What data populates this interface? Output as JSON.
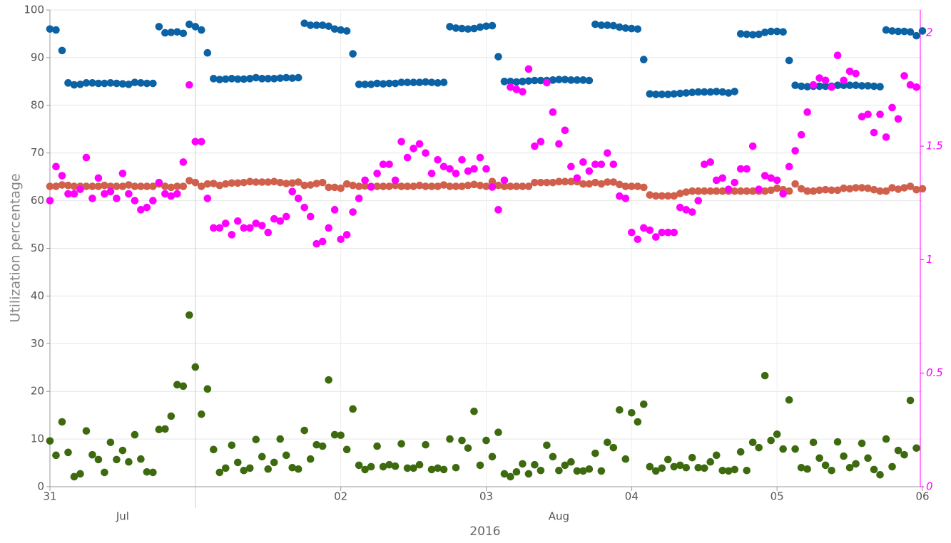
{
  "chart_data": {
    "type": "scatter",
    "y_label": "Utilization percentage",
    "x_label": "2016",
    "xlim": [
      0,
      144
    ],
    "xticks": [
      {
        "value": 0,
        "label": "31"
      },
      {
        "value": 48,
        "label": "02"
      },
      {
        "value": 72,
        "label": "03"
      },
      {
        "value": 96,
        "label": "04"
      },
      {
        "value": 120,
        "label": "05"
      },
      {
        "value": 144,
        "label": "06"
      }
    ],
    "month_boundary": 24,
    "month_labels": [
      {
        "value": 12,
        "label": "Jul"
      },
      {
        "value": 84,
        "label": "Aug"
      }
    ],
    "ylim": [
      0,
      100
    ],
    "yticks": [
      0,
      10,
      20,
      30,
      40,
      50,
      60,
      70,
      80,
      90,
      100
    ],
    "y2lim": [
      0,
      2.1
    ],
    "y2ticks": [
      0,
      0.5,
      1,
      1.5,
      2
    ],
    "y2_color": "#ff00ff",
    "grid": true,
    "x": [
      0,
      1,
      2,
      3,
      4,
      5,
      6,
      7,
      8,
      9,
      10,
      11,
      12,
      13,
      14,
      15,
      16,
      17,
      18,
      19,
      20,
      21,
      22,
      23,
      24,
      25,
      26,
      27,
      28,
      29,
      30,
      31,
      32,
      33,
      34,
      35,
      36,
      37,
      38,
      39,
      40,
      41,
      42,
      43,
      44,
      45,
      46,
      47,
      48,
      49,
      50,
      51,
      52,
      53,
      54,
      55,
      56,
      57,
      58,
      59,
      60,
      61,
      62,
      63,
      64,
      65,
      66,
      67,
      68,
      69,
      70,
      71,
      72,
      73,
      74,
      75,
      76,
      77,
      78,
      79,
      80,
      81,
      82,
      83,
      84,
      85,
      86,
      87,
      88,
      89,
      90,
      91,
      92,
      93,
      94,
      95,
      96,
      97,
      98,
      99,
      100,
      101,
      102,
      103,
      104,
      105,
      106,
      107,
      108,
      109,
      110,
      111,
      112,
      113,
      114,
      115,
      116,
      117,
      118,
      119,
      120,
      121,
      122,
      123,
      124,
      125,
      126,
      127,
      128,
      129,
      130,
      131,
      132,
      133,
      134,
      135,
      136,
      137,
      138,
      139,
      140,
      141,
      142,
      143,
      144
    ],
    "series": [
      {
        "color": "#0b62a4",
        "values": [
          96,
          95.8,
          91.5,
          84.7,
          84.3,
          84.4,
          84.7,
          84.7,
          84.6,
          84.6,
          84.7,
          84.6,
          84.5,
          84.4,
          84.8,
          84.7,
          84.6,
          84.6,
          96.5,
          95.2,
          95.3,
          95.4,
          95.1,
          97,
          96.5,
          95.8,
          91,
          85.6,
          85.4,
          85.5,
          85.6,
          85.5,
          85.5,
          85.6,
          85.8,
          85.6,
          85.6,
          85.6,
          85.7,
          85.8,
          85.7,
          85.8,
          97.2,
          96.8,
          96.8,
          96.8,
          96.6,
          96,
          95.8,
          95.6,
          90.8,
          84.4,
          84.4,
          84.4,
          84.6,
          84.5,
          84.6,
          84.6,
          84.8,
          84.8,
          84.8,
          84.8,
          84.9,
          84.8,
          84.7,
          84.8,
          96.5,
          96.2,
          96.1,
          96,
          96.1,
          96.4,
          96.6,
          96.7,
          90.2,
          85,
          85,
          84.9,
          85,
          85.1,
          85.2,
          85.2,
          85.2,
          85.3,
          85.4,
          85.4,
          85.3,
          85.3,
          85.3,
          85.2,
          97,
          96.8,
          96.8,
          96.7,
          96.4,
          96.2,
          96.1,
          96,
          89.6,
          82.4,
          82.3,
          82.3,
          82.3,
          82.4,
          82.5,
          82.6,
          82.7,
          82.8,
          82.8,
          82.8,
          82.9,
          82.8,
          82.6,
          82.9,
          95,
          94.9,
          94.8,
          94.9,
          95.3,
          95.5,
          95.5,
          95.4,
          89.4,
          84.2,
          84,
          83.9,
          84,
          84,
          84,
          84,
          84.2,
          84.2,
          84.2,
          84.2,
          84.1,
          84.1,
          84,
          83.9,
          95.8,
          95.6,
          95.5,
          95.5,
          95.4,
          94.6,
          95.6
        ]
      },
      {
        "color": "#d0604c",
        "values": [
          63,
          63,
          63.3,
          63.2,
          63,
          63,
          63,
          63,
          63,
          63.2,
          63,
          63,
          63,
          63.3,
          63,
          63,
          63,
          63,
          63.5,
          63,
          62.8,
          63,
          63,
          64.2,
          63.8,
          63,
          63.5,
          63.6,
          63.2,
          63.5,
          63.7,
          63.7,
          63.8,
          64,
          63.9,
          63.9,
          63.9,
          64,
          63.8,
          63.6,
          63.7,
          63.9,
          63.2,
          63.3,
          63.6,
          63.8,
          62.8,
          62.8,
          62.6,
          63.5,
          63.2,
          63,
          63.1,
          63,
          63,
          63,
          63,
          63.2,
          63,
          63,
          63,
          63.2,
          63,
          63,
          63,
          63.3,
          63,
          63,
          63,
          63.2,
          63.4,
          63.2,
          63,
          64,
          63.2,
          63,
          63,
          63,
          63,
          63,
          63.8,
          63.8,
          63.8,
          63.8,
          64,
          64,
          64,
          64,
          63.5,
          63.5,
          63.8,
          63.5,
          63.9,
          63.9,
          63.4,
          63,
          63,
          63,
          62.8,
          61.2,
          61,
          61,
          61,
          61,
          61.5,
          61.8,
          62,
          62,
          62,
          62,
          62,
          62,
          62,
          62,
          62,
          62,
          62,
          62,
          62,
          62.2,
          62.6,
          62.3,
          62,
          63.5,
          62.5,
          62,
          62,
          62.2,
          62.3,
          62.2,
          62.2,
          62.6,
          62.5,
          62.7,
          62.7,
          62.6,
          62.3,
          62,
          62,
          62.7,
          62.4,
          62.7,
          63,
          62.3,
          62.5
        ]
      },
      {
        "color": "#ff00ff",
        "axis": "y2",
        "values": [
          1.26,
          1.41,
          1.37,
          1.29,
          1.29,
          1.31,
          1.45,
          1.27,
          1.36,
          1.29,
          1.3,
          1.27,
          1.38,
          1.29,
          1.26,
          1.22,
          1.23,
          1.26,
          1.34,
          1.29,
          1.28,
          1.29,
          1.43,
          1.77,
          1.52,
          1.52,
          1.27,
          1.14,
          1.14,
          1.16,
          1.11,
          1.17,
          1.14,
          1.14,
          1.16,
          1.15,
          1.12,
          1.18,
          1.17,
          1.19,
          1.3,
          1.27,
          1.23,
          1.19,
          1.07,
          1.08,
          1.14,
          1.22,
          1.09,
          1.11,
          1.21,
          1.27,
          1.35,
          1.32,
          1.38,
          1.42,
          1.42,
          1.35,
          1.52,
          1.45,
          1.49,
          1.51,
          1.47,
          1.38,
          1.44,
          1.41,
          1.4,
          1.38,
          1.44,
          1.39,
          1.4,
          1.45,
          1.4,
          1.32,
          1.22,
          1.35,
          1.76,
          1.75,
          1.74,
          1.84,
          1.5,
          1.52,
          1.78,
          1.65,
          1.51,
          1.57,
          1.41,
          1.36,
          1.43,
          1.39,
          1.42,
          1.42,
          1.47,
          1.42,
          1.28,
          1.27,
          1.12,
          1.09,
          1.14,
          1.13,
          1.1,
          1.12,
          1.12,
          1.12,
          1.23,
          1.22,
          1.21,
          1.26,
          1.42,
          1.43,
          1.35,
          1.36,
          1.31,
          1.34,
          1.4,
          1.4,
          1.5,
          1.31,
          1.37,
          1.36,
          1.35,
          1.29,
          1.41,
          1.48,
          1.55,
          1.65,
          1.77,
          1.8,
          1.79,
          1.76,
          1.9,
          1.79,
          1.83,
          1.82,
          1.63,
          1.64,
          1.56,
          1.64,
          1.54,
          1.67,
          1.62,
          1.81,
          1.77,
          1.76,
          null
        ]
      },
      {
        "color": "#3d6a0e",
        "values": [
          9.6,
          6.6,
          13.6,
          7.2,
          2.1,
          2.7,
          11.7,
          6.7,
          5.7,
          3,
          9.3,
          5.7,
          7.6,
          5.2,
          10.9,
          5.8,
          3.1,
          3,
          12,
          12.1,
          14.8,
          21.4,
          21.1,
          36,
          25.1,
          15.2,
          20.5,
          7.8,
          3,
          3.9,
          8.7,
          5.1,
          3.4,
          3.9,
          9.9,
          6.3,
          3.7,
          5.1,
          10,
          6.6,
          4,
          3.7,
          11.8,
          5.8,
          8.8,
          8.5,
          22.4,
          10.9,
          10.8,
          7.8,
          16.3,
          4.5,
          3.6,
          4.2,
          8.5,
          4.2,
          4.6,
          4.3,
          9,
          3.9,
          3.9,
          4.6,
          8.8,
          3.6,
          3.9,
          3.6,
          10,
          4,
          9.7,
          8.1,
          15.8,
          4.5,
          9.7,
          6.3,
          11.4,
          2.7,
          2.1,
          3.1,
          4.8,
          2.7,
          4.6,
          3.4,
          8.7,
          6.3,
          3.4,
          4.5,
          5.2,
          3.3,
          3.3,
          3.7,
          7,
          3.3,
          9.3,
          8.2,
          16.1,
          5.8,
          15.5,
          13.6,
          17.3,
          4.2,
          3.3,
          3.9,
          5.7,
          4.2,
          4.5,
          4,
          6.1,
          4,
          3.9,
          5.2,
          6.6,
          3.4,
          3.3,
          3.6,
          7.3,
          3.4,
          9.3,
          8.2,
          23.3,
          9.7,
          11,
          7.9,
          18.2,
          7.9,
          4,
          3.7,
          9.3,
          6,
          4.5,
          3.4,
          9.4,
          6.4,
          4,
          4.8,
          9.1,
          6,
          3.6,
          2.5,
          10,
          4.2,
          7.6,
          6.7,
          18.1,
          8.1,
          null
        ]
      }
    ]
  }
}
